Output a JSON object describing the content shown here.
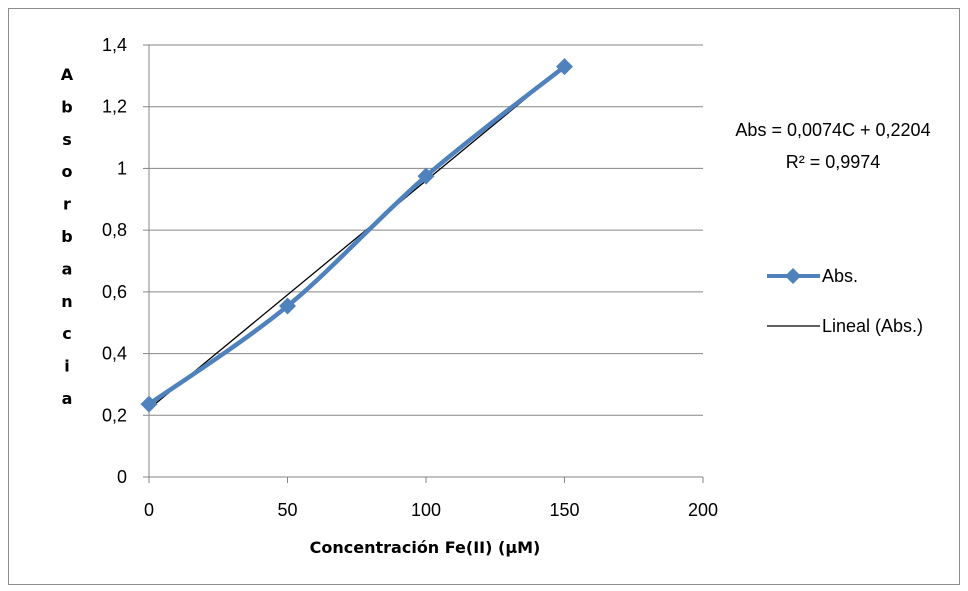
{
  "chart_data": {
    "type": "scatter",
    "x": [
      0,
      50,
      100,
      150
    ],
    "series": [
      {
        "name": "Abs.",
        "values": [
          0.236,
          0.554,
          0.975,
          1.33
        ],
        "color": "#4F81BD",
        "marker": "diamond"
      },
      {
        "name": "Lineal (Abs.)",
        "trendline": {
          "slope": 0.0074,
          "intercept": 0.2204
        },
        "color": "#000000"
      }
    ],
    "xlabel": "Concentración Fe(II) (μM)",
    "ylabel": "Absorbancia",
    "xlim": [
      0,
      200
    ],
    "ylim": [
      0,
      1.4
    ],
    "xticks": [
      "0",
      "50",
      "100",
      "150",
      "200"
    ],
    "yticks": [
      "0",
      "0,2",
      "0,4",
      "0,6",
      "0,8",
      "1",
      "1,2",
      "1,4"
    ],
    "equation": "Abs = 0,0074C + 0,2204",
    "r2": "R² = 0,9974",
    "grid": "horizontal",
    "legend": "right"
  }
}
